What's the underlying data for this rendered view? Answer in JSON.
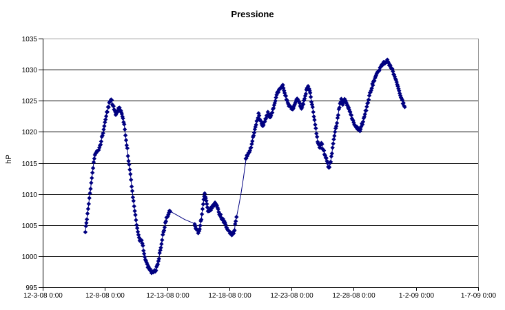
{
  "chart_data": {
    "type": "line",
    "title": "Pressione",
    "legend": "none",
    "grid": "horizontal",
    "y_axis": {
      "label": "hP",
      "min": 995,
      "max": 1035,
      "tick_step": 5,
      "ticks": [
        995,
        1000,
        1005,
        1010,
        1015,
        1020,
        1025,
        1030,
        1035
      ]
    },
    "x_axis": {
      "tick_labels": [
        "12-3-08 0:00",
        "12-8-08 0:00",
        "12-13-08 0:00",
        "12-18-08 0:00",
        "12-23-08 0:00",
        "12-28-08 0:00",
        "1-2-09 0:00",
        "1-7-09 0:00"
      ],
      "tick_days": [
        3,
        8,
        13,
        18,
        23,
        28,
        33,
        38
      ],
      "range_days": [
        3,
        38
      ]
    },
    "colors": {
      "series": "#000080",
      "grid": "#000000",
      "axis": "#000000",
      "plot_border": "#999999",
      "background": "#ffffff",
      "text": "#000000"
    },
    "series": [
      {
        "name": "Pressione",
        "marker": "diamond",
        "color": "#000080",
        "segments": [
          {
            "mode": "dense",
            "points": [
              [
                6.43,
                1004.0
              ],
              [
                6.55,
                1006.0
              ],
              [
                6.7,
                1008.5
              ],
              [
                6.85,
                1011.0
              ],
              [
                7.0,
                1013.5
              ],
              [
                7.15,
                1015.8
              ],
              [
                7.3,
                1016.6
              ],
              [
                7.5,
                1017.1
              ],
              [
                7.65,
                1018.0
              ],
              [
                7.8,
                1019.5
              ],
              [
                7.95,
                1021.0
              ],
              [
                8.15,
                1023.0
              ],
              [
                8.35,
                1024.6
              ],
              [
                8.5,
                1025.2
              ],
              [
                8.65,
                1024.3
              ],
              [
                8.87,
                1022.8
              ],
              [
                9.05,
                1023.5
              ],
              [
                9.18,
                1023.8
              ],
              [
                9.32,
                1023.2
              ],
              [
                9.45,
                1022.3
              ],
              [
                9.6,
                1020.4
              ],
              [
                9.75,
                1018.0
              ],
              [
                9.9,
                1015.5
              ],
              [
                10.05,
                1013.0
              ],
              [
                10.2,
                1010.5
              ],
              [
                10.35,
                1008.0
              ],
              [
                10.5,
                1005.8
              ],
              [
                10.65,
                1004.0
              ],
              [
                10.8,
                1002.6
              ],
              [
                10.95,
                1002.5
              ],
              [
                11.1,
                1001.0
              ],
              [
                11.25,
                999.6
              ],
              [
                11.4,
                998.6
              ],
              [
                11.6,
                997.8
              ],
              [
                11.8,
                997.4
              ],
              [
                11.95,
                997.4
              ],
              [
                12.1,
                997.9
              ],
              [
                12.25,
                998.8
              ],
              [
                12.4,
                1000.3
              ],
              [
                12.55,
                1002.0
              ],
              [
                12.7,
                1003.9
              ],
              [
                12.85,
                1005.3
              ],
              [
                13.0,
                1006.4
              ],
              [
                13.15,
                1007.1
              ],
              [
                13.25,
                1007.2
              ]
            ]
          },
          {
            "mode": "sparse",
            "points": [
              [
                13.25,
                1007.2
              ],
              [
                13.8,
                1006.6
              ],
              [
                14.4,
                1005.9
              ],
              [
                15.0,
                1005.4
              ],
              [
                15.22,
                1005.2
              ]
            ]
          },
          {
            "mode": "dense",
            "points": [
              [
                15.22,
                1005.1
              ],
              [
                15.35,
                1004.4
              ],
              [
                15.5,
                1003.8
              ],
              [
                15.62,
                1004.5
              ],
              [
                15.75,
                1006.0
              ],
              [
                15.9,
                1008.3
              ],
              [
                16.02,
                1010.2
              ],
              [
                16.15,
                1008.8
              ],
              [
                16.28,
                1007.1
              ],
              [
                16.45,
                1007.4
              ],
              [
                16.6,
                1007.9
              ],
              [
                16.75,
                1008.3
              ],
              [
                16.9,
                1008.5
              ],
              [
                17.05,
                1007.7
              ],
              [
                17.2,
                1006.9
              ],
              [
                17.35,
                1006.3
              ],
              [
                17.55,
                1005.6
              ],
              [
                17.75,
                1004.9
              ],
              [
                17.95,
                1004.1
              ],
              [
                18.15,
                1003.6
              ],
              [
                18.3,
                1003.4
              ],
              [
                18.42,
                1004.3
              ],
              [
                18.52,
                1005.8
              ],
              [
                18.58,
                1006.3
              ]
            ]
          },
          {
            "mode": "sparse",
            "points": [
              [
                18.58,
                1006.3
              ],
              [
                18.75,
                1008.0
              ],
              [
                18.95,
                1010.2
              ],
              [
                19.15,
                1012.8
              ],
              [
                19.32,
                1015.3
              ]
            ]
          },
          {
            "mode": "dense",
            "points": [
              [
                19.32,
                1015.5
              ],
              [
                19.45,
                1016.3
              ],
              [
                19.6,
                1016.8
              ],
              [
                19.75,
                1017.6
              ],
              [
                19.9,
                1019.0
              ],
              [
                20.05,
                1020.4
              ],
              [
                20.2,
                1021.7
              ],
              [
                20.35,
                1022.8
              ],
              [
                20.5,
                1021.9
              ],
              [
                20.7,
                1021.0
              ],
              [
                20.9,
                1022.1
              ],
              [
                21.1,
                1023.0
              ],
              [
                21.25,
                1022.4
              ],
              [
                21.4,
                1022.9
              ],
              [
                21.55,
                1024.0
              ],
              [
                21.7,
                1025.2
              ],
              [
                21.9,
                1026.4
              ],
              [
                22.1,
                1027.1
              ],
              [
                22.3,
                1027.4
              ],
              [
                22.45,
                1026.4
              ],
              [
                22.6,
                1025.3
              ],
              [
                22.75,
                1024.5
              ],
              [
                22.95,
                1023.9
              ],
              [
                23.1,
                1023.7
              ],
              [
                23.3,
                1024.7
              ],
              [
                23.5,
                1025.4
              ],
              [
                23.65,
                1024.6
              ],
              [
                23.8,
                1023.8
              ],
              [
                24.0,
                1024.9
              ],
              [
                24.15,
                1026.3
              ],
              [
                24.33,
                1027.4
              ],
              [
                24.5,
                1026.1
              ],
              [
                24.65,
                1024.5
              ],
              [
                24.8,
                1022.4
              ],
              [
                24.95,
                1020.4
              ],
              [
                25.1,
                1018.6
              ],
              [
                25.25,
                1017.4
              ],
              [
                25.4,
                1018.2
              ],
              [
                25.55,
                1017.0
              ],
              [
                25.7,
                1016.4
              ],
              [
                25.85,
                1015.3
              ],
              [
                26.0,
                1014.1
              ],
              [
                26.15,
                1015.2
              ],
              [
                26.3,
                1017.4
              ],
              [
                26.5,
                1019.8
              ],
              [
                26.7,
                1022.2
              ],
              [
                26.85,
                1024.1
              ],
              [
                27.0,
                1025.4
              ],
              [
                27.12,
                1024.4
              ],
              [
                27.27,
                1025.5
              ],
              [
                27.42,
                1024.7
              ],
              [
                27.55,
                1024.0
              ],
              [
                27.72,
                1023.0
              ],
              [
                27.9,
                1022.1
              ],
              [
                28.1,
                1021.1
              ],
              [
                28.3,
                1020.6
              ],
              [
                28.5,
                1020.3
              ],
              [
                28.7,
                1021.4
              ],
              [
                28.9,
                1022.8
              ],
              [
                29.1,
                1024.4
              ],
              [
                29.3,
                1026.1
              ],
              [
                29.5,
                1027.5
              ],
              [
                29.75,
                1028.7
              ],
              [
                29.95,
                1029.7
              ],
              [
                30.2,
                1030.6
              ],
              [
                30.45,
                1031.1
              ],
              [
                30.7,
                1031.4
              ],
              [
                30.9,
                1030.7
              ],
              [
                31.1,
                1030.0
              ],
              [
                31.3,
                1028.8
              ],
              [
                31.5,
                1027.5
              ],
              [
                31.7,
                1026.2
              ],
              [
                31.85,
                1025.3
              ],
              [
                32.0,
                1024.5
              ],
              [
                32.1,
                1024.0
              ]
            ]
          }
        ]
      }
    ]
  }
}
